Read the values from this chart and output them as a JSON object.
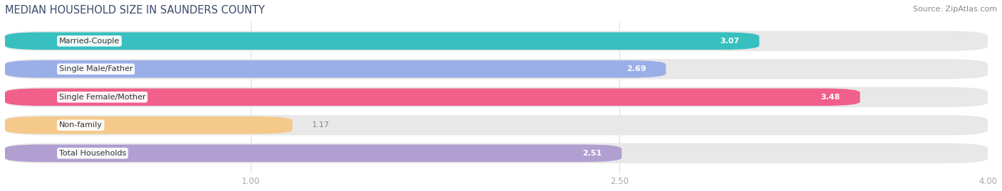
{
  "title": "MEDIAN HOUSEHOLD SIZE IN SAUNDERS COUNTY",
  "source": "Source: ZipAtlas.com",
  "categories": [
    "Married-Couple",
    "Single Male/Father",
    "Single Female/Mother",
    "Non-family",
    "Total Households"
  ],
  "values": [
    3.07,
    2.69,
    3.48,
    1.17,
    2.51
  ],
  "bar_colors": [
    "#38bfbf",
    "#9aaee8",
    "#f0608a",
    "#f5c98a",
    "#b09fd0"
  ],
  "xmin": 0.0,
  "xmax": 4.0,
  "xticks": [
    1.0,
    2.5,
    4.0
  ],
  "xtick_labels": [
    "1.00",
    "2.50",
    "4.00"
  ],
  "value_label_color_inside": "#ffffff",
  "value_label_color_outside": "#888888",
  "background_color": "#ffffff",
  "bar_bg_color": "#e8e8e8",
  "title_fontsize": 10.5,
  "title_color": "#3a4a6b",
  "source_fontsize": 8,
  "source_color": "#888888",
  "label_fontsize": 8,
  "value_fontsize": 8,
  "bar_height": 0.62,
  "bar_gap": 0.38,
  "inside_threshold": 2.0,
  "grid_color": "#dddddd",
  "tick_color": "#aaaaaa"
}
